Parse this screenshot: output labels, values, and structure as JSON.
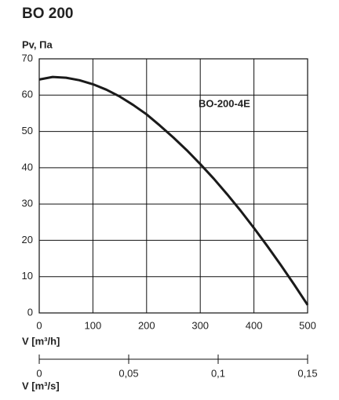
{
  "chart_data": {
    "type": "line",
    "title": "BO 200",
    "y_label": "Pv, Па",
    "x_label": "V [m³/h]",
    "x": [
      0,
      25,
      50,
      75,
      100,
      125,
      150,
      175,
      200,
      225,
      250,
      275,
      300,
      325,
      350,
      375,
      400,
      425,
      450,
      475,
      500
    ],
    "series": [
      {
        "name": "BO-200-4E",
        "color": "#1a1a1a",
        "values": [
          64.3,
          65,
          64.8,
          64.1,
          63,
          61.5,
          59.6,
          57.3,
          54.7,
          51.6,
          48.3,
          44.8,
          41,
          37,
          32.7,
          28.2,
          23.4,
          18.4,
          13.2,
          7.8,
          2.2
        ]
      }
    ],
    "xlim": [
      0,
      500
    ],
    "ylim": [
      0,
      70
    ],
    "xticks": [
      0,
      100,
      200,
      300,
      400,
      500
    ],
    "yticks": [
      0,
      10,
      20,
      30,
      40,
      50,
      60,
      70
    ],
    "grid": true,
    "x2_label": "V [m³/s]",
    "x2lim": [
      0,
      0.15
    ],
    "x2ticks": [
      0,
      {
        "value": 0.05,
        "label": "0,05"
      },
      {
        "value": 0.1,
        "label": "0,1"
      },
      {
        "value": 0.15,
        "label": "0,15"
      }
    ]
  }
}
